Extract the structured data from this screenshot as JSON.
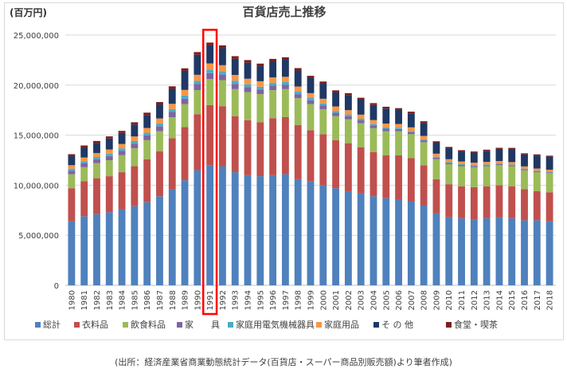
{
  "chart_data": {
    "type": "bar",
    "stacked": true,
    "title": "百貨店売上推移",
    "unit_label": "(百万円)",
    "ylim": [
      0,
      25000000
    ],
    "yticks": [
      0,
      5000000,
      10000000,
      15000000,
      20000000,
      25000000
    ],
    "ytick_labels": [
      "0",
      "5,000,000",
      "10,000,000",
      "15,000,000",
      "20,000,000",
      "25,000,000"
    ],
    "grid": true,
    "legend_position": "bottom",
    "highlight_category": "1991",
    "categories": [
      "1980",
      "1981",
      "1982",
      "1983",
      "1984",
      "1985",
      "1986",
      "1987",
      "1988",
      "1989",
      "1990",
      "1991",
      "1992",
      "1993",
      "1994",
      "1995",
      "1996",
      "1997",
      "1998",
      "1999",
      "2000",
      "2001",
      "2002",
      "2003",
      "2004",
      "2005",
      "2006",
      "2007",
      "2008",
      "2009",
      "2010",
      "2011",
      "2012",
      "2013",
      "2014",
      "2015",
      "2016",
      "2017",
      "2018"
    ],
    "series": [
      {
        "name": "総計",
        "color": "#4f81bd",
        "values": [
          6400000,
          6900000,
          7100000,
          7300000,
          7600000,
          7900000,
          8300000,
          8900000,
          9600000,
          10500000,
          11500000,
          12000000,
          11900000,
          11300000,
          11000000,
          10900000,
          11000000,
          11100000,
          10600000,
          10400000,
          10000000,
          9700000,
          9400000,
          9200000,
          8900000,
          8700000,
          8600000,
          8400000,
          8000000,
          7200000,
          6800000,
          6700000,
          6600000,
          6700000,
          6800000,
          6700000,
          6500000,
          6500000,
          6400000
        ]
      },
      {
        "name": "衣料品",
        "color": "#c0504d",
        "values": [
          3300000,
          3500000,
          3600000,
          3600000,
          3700000,
          4000000,
          4300000,
          4500000,
          5100000,
          5300000,
          5600000,
          6000000,
          6000000,
          5600000,
          5500000,
          5400000,
          5700000,
          5700000,
          5400000,
          5100000,
          5100000,
          4800000,
          4800000,
          4600000,
          4400000,
          4300000,
          4400000,
          4300000,
          4000000,
          3400000,
          3300000,
          3200000,
          3200000,
          3200000,
          3200000,
          3200000,
          3100000,
          2900000,
          2900000
        ]
      },
      {
        "name": "飲食料品",
        "color": "#9bbb59",
        "values": [
          1400000,
          1400000,
          1500000,
          1600000,
          1700000,
          1800000,
          1900000,
          2000000,
          2100000,
          2300000,
          2400000,
          2600000,
          2600000,
          2700000,
          2800000,
          2800000,
          2800000,
          2800000,
          2700000,
          2600000,
          2500000,
          2400000,
          2400000,
          2400000,
          2400000,
          2400000,
          2400000,
          2400000,
          2300000,
          2000000,
          2000000,
          2000000,
          2000000,
          2000000,
          2000000,
          2000000,
          1900000,
          1900000,
          1900000
        ]
      },
      {
        "name": "家　　具",
        "color": "#8064a2",
        "values": [
          350000,
          380000,
          400000,
          420000,
          440000,
          460000,
          480000,
          500000,
          520000,
          550000,
          600000,
          600000,
          550000,
          520000,
          480000,
          450000,
          450000,
          430000,
          400000,
          380000,
          360000,
          330000,
          300000,
          280000,
          260000,
          240000,
          220000,
          200000,
          180000,
          150000,
          130000,
          120000,
          110000,
          100000,
          100000,
          100000,
          90000,
          90000,
          80000
        ]
      },
      {
        "name": "家庭用電気機械器具",
        "color": "#4bacc6",
        "values": [
          200000,
          210000,
          220000,
          230000,
          240000,
          250000,
          260000,
          270000,
          290000,
          310000,
          330000,
          350000,
          340000,
          320000,
          300000,
          290000,
          280000,
          270000,
          250000,
          230000,
          210000,
          190000,
          170000,
          160000,
          150000,
          140000,
          130000,
          120000,
          110000,
          100000,
          90000,
          80000,
          80000,
          70000,
          70000,
          70000,
          60000,
          60000,
          60000
        ]
      },
      {
        "name": "家庭用品",
        "color": "#f79646",
        "values": [
          350000,
          380000,
          400000,
          420000,
          440000,
          460000,
          480000,
          500000,
          520000,
          560000,
          600000,
          620000,
          600000,
          580000,
          560000,
          550000,
          540000,
          530000,
          510000,
          490000,
          470000,
          450000,
          430000,
          410000,
          400000,
          380000,
          370000,
          360000,
          340000,
          300000,
          280000,
          270000,
          260000,
          260000,
          250000,
          240000,
          230000,
          220000,
          210000
        ]
      },
      {
        "name": "そ の 他",
        "color": "#1f3864",
        "values": [
          900000,
          1000000,
          1000000,
          1100000,
          1100000,
          1200000,
          1300000,
          1400000,
          1500000,
          1900000,
          2000000,
          1800000,
          1700000,
          1600000,
          1600000,
          1500000,
          1600000,
          1700000,
          1600000,
          1500000,
          1500000,
          1400000,
          1500000,
          1500000,
          1500000,
          1500000,
          1400000,
          1400000,
          1300000,
          1100000,
          1100000,
          1000000,
          1000000,
          1100000,
          1200000,
          1300000,
          1200000,
          1300000,
          1300000
        ]
      },
      {
        "name": "食堂・喫茶",
        "color": "#7b1f1f",
        "values": [
          200000,
          200000,
          200000,
          210000,
          210000,
          220000,
          230000,
          240000,
          250000,
          260000,
          270000,
          280000,
          280000,
          270000,
          260000,
          260000,
          250000,
          250000,
          240000,
          230000,
          220000,
          210000,
          200000,
          190000,
          190000,
          180000,
          180000,
          170000,
          160000,
          140000,
          130000,
          130000,
          120000,
          120000,
          120000,
          120000,
          110000,
          110000,
          100000
        ]
      }
    ]
  },
  "source_note": "(出所：経済産業省商業動態統計データ(百貨店・スーパー商品別販売額)より筆者作成)"
}
